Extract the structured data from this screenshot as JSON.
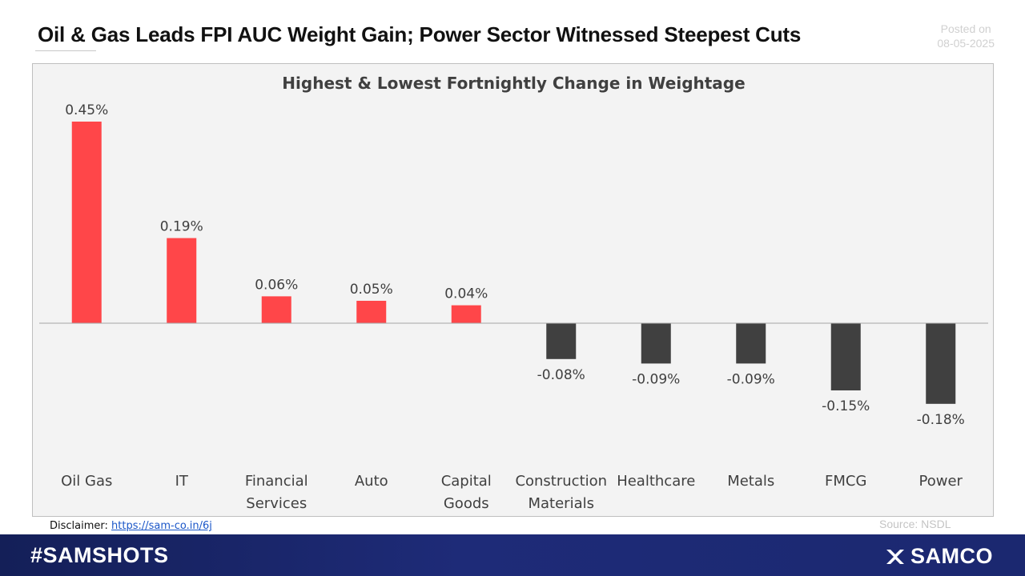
{
  "header": {
    "title": "Oil & Gas Leads FPI AUC Weight Gain; Power Sector Witnessed Steepest Cuts",
    "posted_label": "Posted on",
    "posted_date": "08-05-2025"
  },
  "footer": {
    "disclaimer_label": "Disclaimer:",
    "disclaimer_link": "https://sam-co.in/6j",
    "source": "Source: NSDL",
    "hashtag": "#SAMSHOTS",
    "brand": "SAMCO"
  },
  "colors": {
    "positive": "#ff4649",
    "negative": "#404040",
    "headline": "#111111",
    "footer_bg": "#1b2870"
  },
  "chart_data": {
    "type": "bar",
    "title": "Highest & Lowest Fortnightly Change in Weightage",
    "categories": [
      [
        "Oil Gas"
      ],
      [
        "IT"
      ],
      [
        "Financial",
        "Services"
      ],
      [
        "Auto"
      ],
      [
        "Capital",
        "Goods"
      ],
      [
        "Construction",
        "Materials"
      ],
      [
        "Healthcare"
      ],
      [
        "Metals"
      ],
      [
        "FMCG"
      ],
      [
        "Power"
      ]
    ],
    "values": [
      0.45,
      0.19,
      0.06,
      0.05,
      0.04,
      -0.08,
      -0.09,
      -0.09,
      -0.15,
      -0.18
    ],
    "labels": [
      "0.45%",
      "0.19%",
      "0.06%",
      "0.05%",
      "0.04%",
      "-0.08%",
      "-0.09%",
      "-0.09%",
      "-0.15%",
      "-0.18%"
    ],
    "unit": "%",
    "xlabel": "",
    "ylabel": "",
    "ylim": [
      -0.18,
      0.45
    ],
    "grid": false,
    "legend": "none"
  }
}
